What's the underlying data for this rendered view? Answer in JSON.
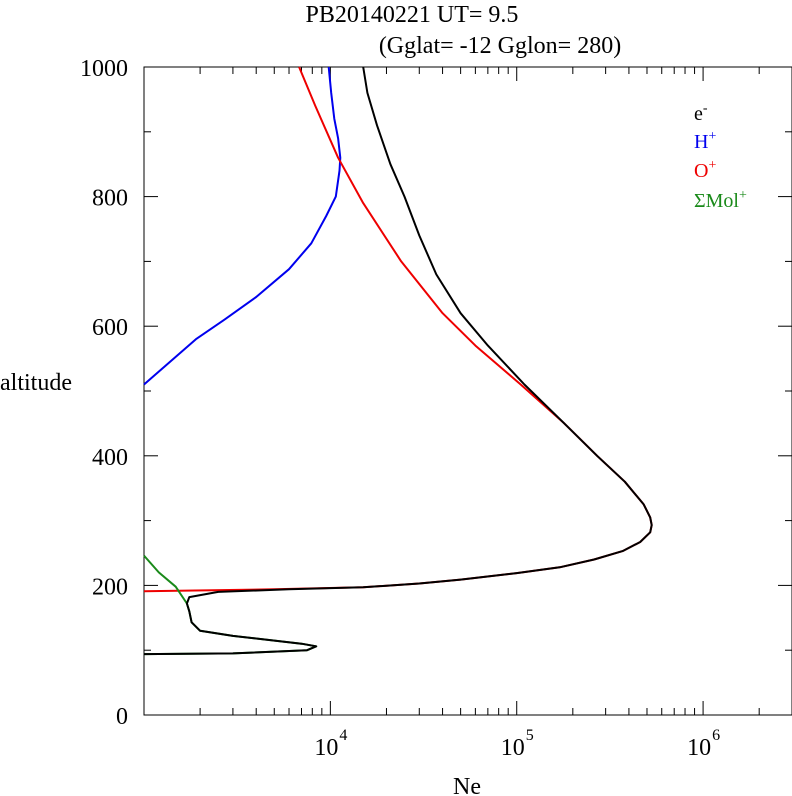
{
  "chart_data": {
    "type": "line",
    "title": "PB20140221   UT=  9.5",
    "subtitle": "(Gglat= -12   Gglon=  280)",
    "xlabel": "Ne",
    "ylabel": "altitude",
    "xscale": "log",
    "xlim": [
      1000,
      3000000
    ],
    "ylim": [
      0,
      1000
    ],
    "x_ticks": [
      {
        "value": 10000,
        "base": "10",
        "exp": "4"
      },
      {
        "value": 100000,
        "base": "10",
        "exp": "5"
      },
      {
        "value": 1000000,
        "base": "10",
        "exp": "6"
      }
    ],
    "y_ticks": [
      "0",
      "200",
      "400",
      "600",
      "800",
      "1000"
    ],
    "grid": false,
    "legend_position": "top-right",
    "series": [
      {
        "name": "e",
        "sup": "-",
        "color": "#000000",
        "points": [
          [
            1000,
            94
          ],
          [
            3000,
            95
          ],
          [
            7500,
            100
          ],
          [
            8400,
            106
          ],
          [
            7000,
            110
          ],
          [
            3000,
            122
          ],
          [
            2000,
            130
          ],
          [
            1800,
            143
          ],
          [
            1750,
            160
          ],
          [
            1700,
            172
          ],
          [
            1750,
            182
          ],
          [
            2500,
            190
          ],
          [
            6000,
            194
          ],
          [
            15000,
            197
          ],
          [
            30000,
            203
          ],
          [
            50000,
            209
          ],
          [
            100000,
            219
          ],
          [
            170000,
            228
          ],
          [
            260000,
            240
          ],
          [
            370000,
            253
          ],
          [
            460000,
            267
          ],
          [
            520000,
            282
          ],
          [
            530000,
            293
          ],
          [
            520000,
            305
          ],
          [
            480000,
            325
          ],
          [
            380000,
            360
          ],
          [
            270000,
            400
          ],
          [
            180000,
            450
          ],
          [
            110000,
            510
          ],
          [
            70000,
            570
          ],
          [
            50000,
            620
          ],
          [
            37000,
            680
          ],
          [
            30000,
            740
          ],
          [
            25000,
            800
          ],
          [
            21000,
            850
          ],
          [
            17800,
            910
          ],
          [
            15800,
            960
          ],
          [
            15000,
            1000
          ]
        ]
      },
      {
        "name": "H",
        "sup": "+",
        "color": "#0000ee",
        "points": [
          [
            1000,
            510
          ],
          [
            1900,
            580
          ],
          [
            2700,
            610
          ],
          [
            4000,
            645
          ],
          [
            6000,
            688
          ],
          [
            7900,
            728
          ],
          [
            9500,
            770
          ],
          [
            10700,
            800
          ],
          [
            11200,
            840
          ],
          [
            11300,
            860
          ],
          [
            11000,
            890
          ],
          [
            10500,
            920
          ],
          [
            10100,
            960
          ],
          [
            9800,
            1000
          ]
        ]
      },
      {
        "name": "O",
        "sup": "+",
        "color": "#ee0000",
        "points": [
          [
            1000,
            191
          ],
          [
            5000,
            194
          ],
          [
            15000,
            197
          ],
          [
            30000,
            203
          ],
          [
            50000,
            209
          ],
          [
            100000,
            219
          ],
          [
            170000,
            228
          ],
          [
            260000,
            240
          ],
          [
            370000,
            253
          ],
          [
            460000,
            267
          ],
          [
            520000,
            282
          ],
          [
            530000,
            293
          ],
          [
            520000,
            305
          ],
          [
            480000,
            325
          ],
          [
            380000,
            360
          ],
          [
            270000,
            400
          ],
          [
            180000,
            450
          ],
          [
            105000,
            510
          ],
          [
            60000,
            570
          ],
          [
            40000,
            620
          ],
          [
            24000,
            700
          ],
          [
            15000,
            790
          ],
          [
            11000,
            860
          ],
          [
            8300,
            940
          ],
          [
            6800,
            1000
          ]
        ]
      },
      {
        "name": "ΣMol",
        "sup": "+",
        "color": "#1a8a1a",
        "points": [
          [
            1000,
            246
          ],
          [
            1200,
            220
          ],
          [
            1480,
            198
          ],
          [
            1700,
            172
          ],
          [
            1750,
            160
          ],
          [
            1800,
            143
          ],
          [
            2000,
            130
          ],
          [
            3000,
            122
          ],
          [
            7000,
            110
          ],
          [
            8400,
            106
          ],
          [
            7500,
            100
          ],
          [
            3000,
            95
          ],
          [
            1000,
            94
          ]
        ]
      }
    ]
  }
}
